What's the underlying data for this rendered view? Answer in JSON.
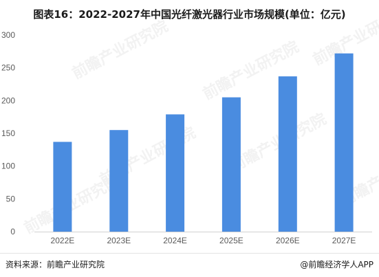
{
  "chart_data": {
    "type": "bar",
    "title": "图表16：2022-2027年中国光纤激光器行业市场规模(单位：亿元)",
    "categories": [
      "2022E",
      "2023E",
      "2024E",
      "2025E",
      "2026E",
      "2027E"
    ],
    "series": [
      {
        "values": [
          137,
          155,
          179,
          205,
          237,
          272
        ]
      }
    ],
    "xlabel": "",
    "ylabel": "",
    "ylim": [
      0,
      300
    ],
    "yticks": [
      0,
      50,
      100,
      150,
      200,
      250,
      300
    ],
    "grid": false,
    "legend": "none",
    "bar_color": "#4a8ce0"
  },
  "footer": {
    "source": "资料来源：前瞻产业研究院",
    "credit": "@前瞻经济学人APP"
  },
  "watermark": {
    "brand": "前瞻产业研究院"
  }
}
